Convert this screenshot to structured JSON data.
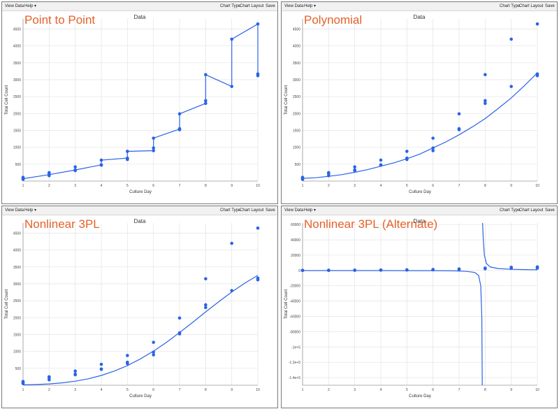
{
  "toolbar": {
    "view_data": "View Data",
    "help": "Help ▾",
    "chart_type": "Chart Type",
    "chart_layout": "Chart Layout",
    "save": "Save"
  },
  "colors": {
    "series": "#2a63e6",
    "overlay_text": "#e4622a",
    "grid": "#e3e3e3"
  },
  "chart_data": [
    {
      "type": "scatter",
      "overlay_label": "Point to Point",
      "title": "Data",
      "xlabel": "Culture Day",
      "ylabel": "Total Cell Count",
      "xlim": [
        1,
        10
      ],
      "ylim": [
        0,
        4800
      ],
      "yticks": [
        500,
        1000,
        1500,
        2000,
        2500,
        3000,
        3500,
        4000,
        4500
      ],
      "ytick_labels": [
        "500",
        "1000",
        "1500",
        "2000",
        "2500",
        "3000",
        "3500",
        "4000",
        "4500"
      ],
      "xticks": [
        1,
        2,
        3,
        4,
        5,
        6,
        7,
        8,
        9,
        10
      ],
      "fit": "point-to-point",
      "points": [
        [
          1,
          50
        ],
        [
          1,
          80
        ],
        [
          1,
          110
        ],
        [
          2,
          160
        ],
        [
          2,
          220
        ],
        [
          2,
          250
        ],
        [
          3,
          310
        ],
        [
          3,
          330
        ],
        [
          3,
          420
        ],
        [
          4,
          470
        ],
        [
          4,
          480
        ],
        [
          4,
          620
        ],
        [
          5,
          640
        ],
        [
          5,
          680
        ],
        [
          5,
          880
        ],
        [
          6,
          900
        ],
        [
          6,
          980
        ],
        [
          6,
          1270
        ],
        [
          7,
          1520
        ],
        [
          7,
          1550
        ],
        [
          7,
          1990
        ],
        [
          8,
          2300
        ],
        [
          8,
          2380
        ],
        [
          8,
          3150
        ],
        [
          9,
          2800
        ],
        [
          9,
          4200
        ],
        [
          10,
          3120
        ],
        [
          10,
          3170
        ],
        [
          10,
          4650
        ]
      ],
      "line": [
        [
          1,
          70
        ],
        [
          2,
          190
        ],
        [
          3,
          330
        ],
        [
          4,
          480
        ],
        [
          4,
          620
        ],
        [
          5,
          680
        ],
        [
          5,
          880
        ],
        [
          6,
          900
        ],
        [
          6,
          1270
        ],
        [
          7,
          1540
        ],
        [
          7,
          1990
        ],
        [
          8,
          2300
        ],
        [
          8,
          3150
        ],
        [
          9,
          2800
        ],
        [
          9,
          4200
        ],
        [
          10,
          4650
        ],
        [
          10,
          3120
        ]
      ]
    },
    {
      "type": "scatter",
      "overlay_label": "Polynomial",
      "title": "Data",
      "xlabel": "Culture Day",
      "ylabel": "Total Cell Count",
      "xlim": [
        1,
        10
      ],
      "ylim": [
        0,
        4800
      ],
      "yticks": [
        500,
        1000,
        1500,
        2000,
        2500,
        3000,
        3500,
        4000,
        4500
      ],
      "ytick_labels": [
        "500",
        "1000",
        "1500",
        "2000",
        "2500",
        "3000",
        "3500",
        "4000",
        "4500"
      ],
      "xticks": [
        1,
        2,
        3,
        4,
        5,
        6,
        7,
        8,
        9,
        10
      ],
      "fit": "polynomial",
      "points": [
        [
          1,
          50
        ],
        [
          1,
          80
        ],
        [
          1,
          110
        ],
        [
          2,
          160
        ],
        [
          2,
          220
        ],
        [
          2,
          250
        ],
        [
          3,
          310
        ],
        [
          3,
          330
        ],
        [
          3,
          420
        ],
        [
          4,
          470
        ],
        [
          4,
          480
        ],
        [
          4,
          620
        ],
        [
          5,
          640
        ],
        [
          5,
          680
        ],
        [
          5,
          880
        ],
        [
          6,
          900
        ],
        [
          6,
          980
        ],
        [
          6,
          1270
        ],
        [
          7,
          1520
        ],
        [
          7,
          1550
        ],
        [
          7,
          1990
        ],
        [
          8,
          2300
        ],
        [
          8,
          2380
        ],
        [
          8,
          3150
        ],
        [
          9,
          2800
        ],
        [
          9,
          4200
        ],
        [
          10,
          3120
        ],
        [
          10,
          3170
        ],
        [
          10,
          4650
        ]
      ],
      "line": [
        [
          1,
          80
        ],
        [
          1.5,
          100
        ],
        [
          2,
          140
        ],
        [
          2.5,
          190
        ],
        [
          3,
          260
        ],
        [
          3.5,
          340
        ],
        [
          4,
          440
        ],
        [
          4.5,
          540
        ],
        [
          5,
          660
        ],
        [
          5.5,
          800
        ],
        [
          6,
          980
        ],
        [
          6.5,
          1160
        ],
        [
          7,
          1370
        ],
        [
          7.5,
          1600
        ],
        [
          8,
          1850
        ],
        [
          8.5,
          2150
        ],
        [
          9,
          2460
        ],
        [
          9.5,
          2820
        ],
        [
          10,
          3200
        ]
      ]
    },
    {
      "type": "scatter",
      "overlay_label": "Nonlinear 3PL",
      "title": "Data",
      "xlabel": "Culture Day",
      "ylabel": "Total Cell Count",
      "xlim": [
        1,
        10
      ],
      "ylim": [
        0,
        4800
      ],
      "yticks": [
        500,
        1000,
        1500,
        2000,
        2500,
        3000,
        3500,
        4000,
        4500
      ],
      "ytick_labels": [
        "500",
        "1000",
        "1500",
        "2000",
        "2500",
        "3000",
        "3500",
        "4000",
        "4500"
      ],
      "xticks": [
        1,
        2,
        3,
        4,
        5,
        6,
        7,
        8,
        9,
        10
      ],
      "fit": "nonlinear-3pl",
      "points": [
        [
          1,
          50
        ],
        [
          1,
          80
        ],
        [
          1,
          110
        ],
        [
          2,
          160
        ],
        [
          2,
          220
        ],
        [
          2,
          250
        ],
        [
          3,
          310
        ],
        [
          3,
          330
        ],
        [
          3,
          420
        ],
        [
          4,
          470
        ],
        [
          4,
          480
        ],
        [
          4,
          620
        ],
        [
          5,
          640
        ],
        [
          5,
          680
        ],
        [
          5,
          880
        ],
        [
          6,
          900
        ],
        [
          6,
          980
        ],
        [
          6,
          1270
        ],
        [
          7,
          1520
        ],
        [
          7,
          1550
        ],
        [
          7,
          1990
        ],
        [
          8,
          2300
        ],
        [
          8,
          2380
        ],
        [
          8,
          3150
        ],
        [
          9,
          2800
        ],
        [
          9,
          4200
        ],
        [
          10,
          3120
        ],
        [
          10,
          3170
        ],
        [
          10,
          4650
        ]
      ],
      "line": [
        [
          1,
          10
        ],
        [
          1.5,
          20
        ],
        [
          2,
          40
        ],
        [
          2.5,
          70
        ],
        [
          3,
          120
        ],
        [
          3.5,
          190
        ],
        [
          4,
          290
        ],
        [
          4.5,
          420
        ],
        [
          5,
          580
        ],
        [
          5.5,
          780
        ],
        [
          6,
          1010
        ],
        [
          6.5,
          1270
        ],
        [
          7,
          1560
        ],
        [
          7.5,
          1860
        ],
        [
          8,
          2170
        ],
        [
          8.5,
          2470
        ],
        [
          9,
          2760
        ],
        [
          9.5,
          3020
        ],
        [
          10,
          3250
        ]
      ]
    },
    {
      "type": "scatter",
      "overlay_label": "Nonlinear 3PL (Alternate)",
      "title": "Data",
      "xlabel": "Culture Day",
      "ylabel": "Total Cell Count",
      "xlim": [
        1,
        10
      ],
      "ylim": [
        -150000,
        62000
      ],
      "yticks": [
        60000,
        40000,
        20000,
        0,
        -20000,
        -40000,
        -60000,
        -80000,
        -100000,
        -120000,
        -140000
      ],
      "ytick_labels": [
        "60000",
        "40000",
        "20000",
        "0",
        "-20000",
        "-40000",
        "-60000",
        "-80000",
        "-1e+5",
        "-1.2e+5",
        "-1.4e+5"
      ],
      "xticks": [
        1,
        2,
        3,
        4,
        5,
        6,
        7,
        8,
        9,
        10
      ],
      "fit": "nonlinear-3pl-alternate",
      "points": [
        [
          1,
          50
        ],
        [
          1,
          80
        ],
        [
          1,
          110
        ],
        [
          2,
          160
        ],
        [
          2,
          220
        ],
        [
          2,
          250
        ],
        [
          3,
          310
        ],
        [
          3,
          330
        ],
        [
          3,
          420
        ],
        [
          4,
          470
        ],
        [
          4,
          480
        ],
        [
          4,
          620
        ],
        [
          5,
          640
        ],
        [
          5,
          680
        ],
        [
          5,
          880
        ],
        [
          6,
          900
        ],
        [
          6,
          980
        ],
        [
          6,
          1270
        ],
        [
          7,
          1520
        ],
        [
          7,
          1550
        ],
        [
          7,
          1990
        ],
        [
          8,
          2300
        ],
        [
          8,
          2380
        ],
        [
          8,
          3150
        ],
        [
          9,
          2800
        ],
        [
          9,
          4200
        ],
        [
          10,
          3120
        ],
        [
          10,
          3170
        ],
        [
          10,
          4650
        ]
      ],
      "line": [
        [
          1,
          -150
        ],
        [
          2,
          -150
        ],
        [
          3,
          -160
        ],
        [
          4,
          -180
        ],
        [
          5,
          -200
        ],
        [
          6,
          -260
        ],
        [
          6.8,
          -500
        ],
        [
          7.3,
          -1200
        ],
        [
          7.6,
          -2600
        ],
        [
          7.75,
          -6500
        ],
        [
          7.83,
          -20000
        ],
        [
          7.87,
          -60000
        ],
        [
          7.89,
          -150000
        ],
        null,
        [
          7.9,
          62000
        ],
        [
          7.93,
          40000
        ],
        [
          7.97,
          20000
        ],
        [
          8.05,
          9000
        ],
        [
          8.2,
          4500
        ],
        [
          8.5,
          2500
        ],
        [
          9,
          1500
        ],
        [
          9.5,
          1100
        ],
        [
          10,
          900
        ]
      ]
    }
  ]
}
